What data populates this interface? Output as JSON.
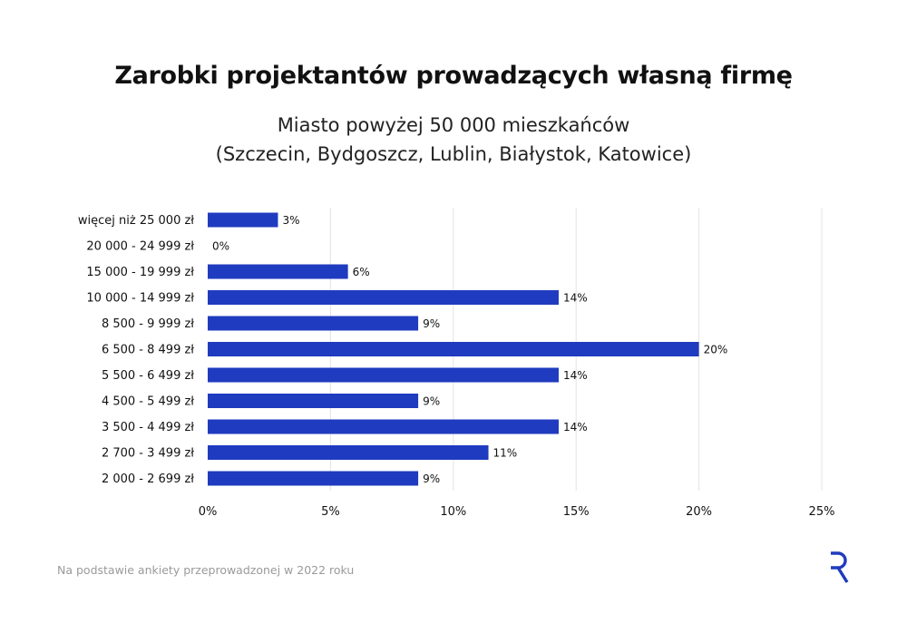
{
  "title": "Zarobki projektantów prowadzących własną firmę",
  "subtitle_line1": "Miasto powyżej 50 000 mieszkańców",
  "subtitle_line2": "(Szczecin, Bydgoszcz, Lublin, Białystok, Katowice)",
  "footer": "Na podstawie ankiety przeprowadzonej w 2022 roku",
  "logo_icon": "R-logo-icon",
  "colors": {
    "bar": "#1f3bbf",
    "grid": "#e3e3e3",
    "logo": "#1f3bbf"
  },
  "chart_data": {
    "type": "bar",
    "orientation": "horizontal",
    "categories": [
      "więcej niż 25 000 zł",
      "20 000 - 24 999 zł",
      "15 000 - 19 999 zł",
      "10 000 - 14 999 zł",
      "8 500 - 9 999 zł",
      "6 500 - 8 499 zł",
      "5 500 - 6 499 zł",
      "4 500 - 5 499 zł",
      "3 500 - 4 499 zł",
      "2 700 - 3 499 zł",
      "2 000 - 2 699 zł"
    ],
    "values": [
      2.86,
      0,
      5.71,
      14.29,
      8.57,
      20,
      14.29,
      8.57,
      14.29,
      11.43,
      8.57
    ],
    "data_labels": [
      "3%",
      "0%",
      "6%",
      "14%",
      "9%",
      "20%",
      "14%",
      "9%",
      "14%",
      "11%",
      "9%"
    ],
    "xlim": [
      0,
      25
    ],
    "x_ticks": [
      0,
      5,
      10,
      15,
      20,
      25
    ],
    "x_tick_labels": [
      "0%",
      "5%",
      "10%",
      "15%",
      "20%",
      "25%"
    ],
    "grid": true,
    "legend": "none"
  }
}
